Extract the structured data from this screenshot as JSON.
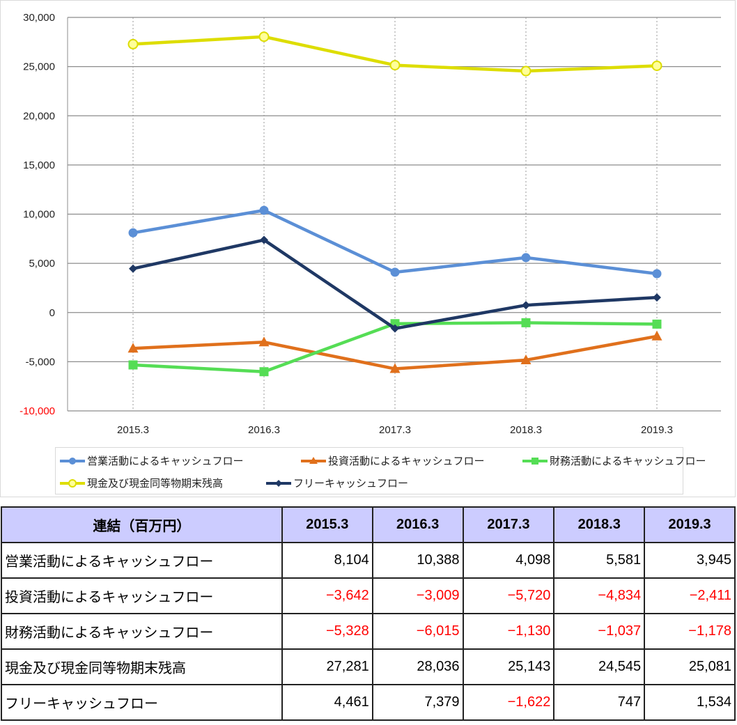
{
  "chart_data": {
    "type": "line",
    "categories": [
      "2015.3",
      "2016.3",
      "2017.3",
      "2018.3",
      "2019.3"
    ],
    "ylim": [
      -10000,
      30000
    ],
    "yticks": [
      30000,
      25000,
      20000,
      15000,
      10000,
      5000,
      0,
      -5000,
      -10000
    ],
    "ytick_labels": [
      "30,000",
      "25,000",
      "20,000",
      "15,000",
      "10,000",
      "5,000",
      "0",
      "-5,000",
      "-10,000"
    ],
    "grid": true,
    "legend_position": "bottom",
    "series": [
      {
        "name": "営業活動によるキャッシュフロー",
        "values": [
          8104,
          10388,
          4098,
          5581,
          3945
        ],
        "color": "#5b8fd6",
        "marker": "circle"
      },
      {
        "name": "投資活動によるキャッシュフロー",
        "values": [
          -3642,
          -3009,
          -5720,
          -4834,
          -2411
        ],
        "color": "#e0701c",
        "marker": "triangle"
      },
      {
        "name": "財務活動によるキャッシュフロー",
        "values": [
          -5328,
          -6015,
          -1130,
          -1037,
          -1178
        ],
        "color": "#55dd55",
        "marker": "square"
      },
      {
        "name": "現金及び現金同等物期末残高",
        "values": [
          27281,
          28036,
          25143,
          24545,
          25081
        ],
        "color": "#dddd00",
        "marker": "circle-open"
      },
      {
        "name": "フリーキャッシュフロー",
        "values": [
          4461,
          7379,
          -1622,
          747,
          1534
        ],
        "color": "#1f3864",
        "marker": "diamond"
      }
    ]
  },
  "table": {
    "header": [
      "連結（百万円）",
      "2015.3",
      "2016.3",
      "2017.3",
      "2018.3",
      "2019.3"
    ],
    "rows": [
      {
        "label": "営業活動によるキャッシュフロー",
        "cells": [
          "8,104",
          "10,388",
          "4,098",
          "5,581",
          "3,945"
        ]
      },
      {
        "label": "投資活動によるキャッシュフロー",
        "cells": [
          "−3,642",
          "−3,009",
          "−5,720",
          "−4,834",
          "−2,411"
        ]
      },
      {
        "label": "財務活動によるキャッシュフロー",
        "cells": [
          "−5,328",
          "−6,015",
          "−1,130",
          "−1,037",
          "−1,178"
        ]
      },
      {
        "label": "現金及び現金同等物期末残高",
        "cells": [
          "27,281",
          "28,036",
          "25,143",
          "24,545",
          "25,081"
        ]
      },
      {
        "label": "フリーキャッシュフロー",
        "cells": [
          "4,461",
          "7,379",
          "−1,622",
          "747",
          "1,534"
        ]
      }
    ]
  }
}
